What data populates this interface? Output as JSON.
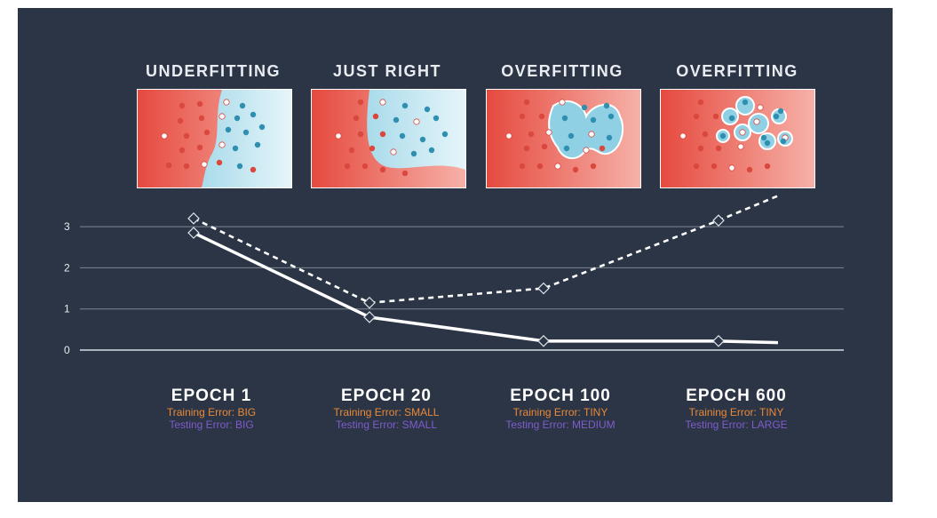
{
  "colors": {
    "background": "#2b3545",
    "train_line": "#ffffff",
    "test_line": "#ffffff",
    "train_text": "#e8893a",
    "test_text": "#7f5ccc",
    "red_region": "#e8544a",
    "blue_region": "#7fcbe0",
    "grid": "#7e8794"
  },
  "panels": [
    {
      "title": "UNDERFITTING",
      "boundary": "line"
    },
    {
      "title": "JUST RIGHT",
      "boundary": "curve"
    },
    {
      "title": "OVERFITTING",
      "boundary": "blob"
    },
    {
      "title": "OVERFITTING",
      "boundary": "islands"
    }
  ],
  "epochs": [
    {
      "label": "EPOCH 1",
      "training": "Training Error: BIG",
      "testing": "Testing Error: BIG"
    },
    {
      "label": "EPOCH 20",
      "training": "Training Error: SMALL",
      "testing": "Testing Error: SMALL"
    },
    {
      "label": "EPOCH 100",
      "training": "Training Error: TINY",
      "testing": "Testing Error: MEDIUM"
    },
    {
      "label": "EPOCH 600",
      "training": "Training Error: TINY",
      "testing": "Testing Error: LARGE"
    }
  ],
  "chart_data": {
    "type": "line",
    "categories": [
      "EPOCH 1",
      "EPOCH 20",
      "EPOCH 100",
      "EPOCH 600"
    ],
    "ylim": [
      0,
      3.5
    ],
    "yticks": [
      0,
      1,
      2,
      3
    ],
    "grid": true,
    "series": [
      {
        "style": "solid",
        "values": [
          2.85,
          0.8,
          0.22,
          0.22
        ],
        "end_value": 0.18
      },
      {
        "style": "dashed",
        "values": [
          3.2,
          1.15,
          1.5,
          3.15
        ],
        "end_value": 3.75
      }
    ],
    "xlabel": "",
    "ylabel": "",
    "title": ""
  }
}
